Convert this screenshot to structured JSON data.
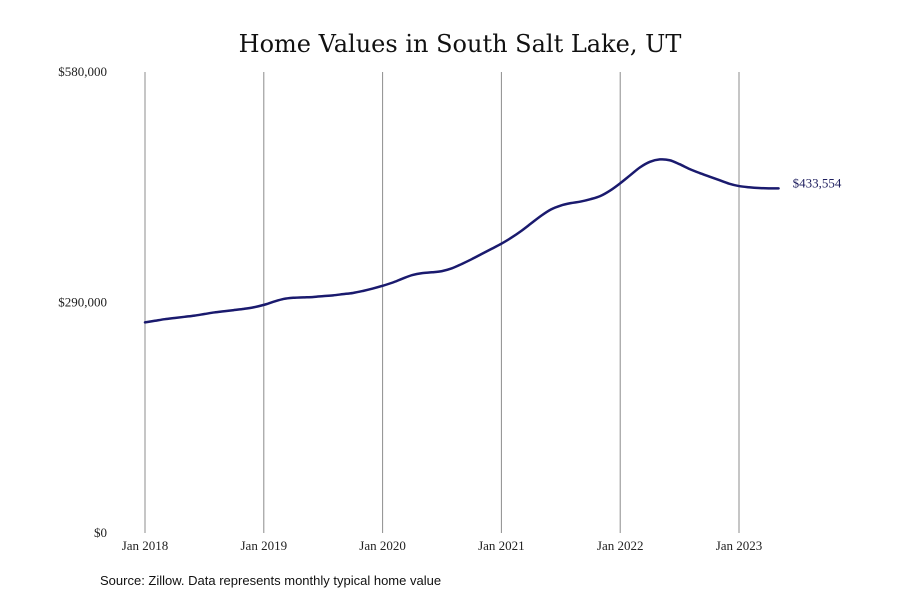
{
  "chart_data": {
    "type": "line",
    "title": "Home Values in South Salt Lake, UT",
    "xlabel": "",
    "ylabel": "",
    "ylim": [
      0,
      580000
    ],
    "y_ticks": [
      {
        "value": 0,
        "label": "$0"
      },
      {
        "value": 290000,
        "label": "$290,000"
      },
      {
        "value": 580000,
        "label": "$580,000"
      }
    ],
    "x_ticks": [
      "Jan 2018",
      "Jan 2019",
      "Jan 2020",
      "Jan 2021",
      "Jan 2022",
      "Jan 2023"
    ],
    "grid": "vertical lines at each January",
    "line_color": "#1a1a6e",
    "series": [
      {
        "name": "",
        "x": [
          "2018-01",
          "2018-02",
          "2018-03",
          "2018-04",
          "2018-05",
          "2018-06",
          "2018-07",
          "2018-08",
          "2018-09",
          "2018-10",
          "2018-11",
          "2018-12",
          "2019-01",
          "2019-02",
          "2019-03",
          "2019-04",
          "2019-05",
          "2019-06",
          "2019-07",
          "2019-08",
          "2019-09",
          "2019-10",
          "2019-11",
          "2019-12",
          "2020-01",
          "2020-02",
          "2020-03",
          "2020-04",
          "2020-05",
          "2020-06",
          "2020-07",
          "2020-08",
          "2020-09",
          "2020-10",
          "2020-11",
          "2020-12",
          "2021-01",
          "2021-02",
          "2021-03",
          "2021-04",
          "2021-05",
          "2021-06",
          "2021-07",
          "2021-08",
          "2021-09",
          "2021-10",
          "2021-11",
          "2021-12",
          "2022-01",
          "2022-02",
          "2022-03",
          "2022-04",
          "2022-05",
          "2022-06",
          "2022-07",
          "2022-08",
          "2022-09",
          "2022-10",
          "2022-11",
          "2022-12",
          "2023-01",
          "2023-02",
          "2023-03",
          "2023-04",
          "2023-05"
        ],
        "values": [
          265000,
          267000,
          269000,
          270500,
          272000,
          273500,
          275500,
          277500,
          279000,
          280500,
          282000,
          284000,
          287000,
          291000,
          294500,
          296000,
          296500,
          297000,
          298000,
          299000,
          300500,
          302000,
          304500,
          307500,
          311000,
          315000,
          320000,
          324500,
          327000,
          328000,
          329500,
          333000,
          338500,
          344500,
          351000,
          357500,
          364000,
          371500,
          380000,
          389500,
          399000,
          407000,
          412000,
          415000,
          417000,
          420000,
          424000,
          431000,
          440000,
          450000,
          460000,
          467000,
          470000,
          469000,
          464000,
          458000,
          453000,
          448500,
          444000,
          439500,
          436500,
          435000,
          434000,
          433600,
          433554
        ]
      }
    ],
    "end_label": "$433,554"
  },
  "footer": {
    "source": "Source: Zillow. Data represents monthly typical home value"
  }
}
